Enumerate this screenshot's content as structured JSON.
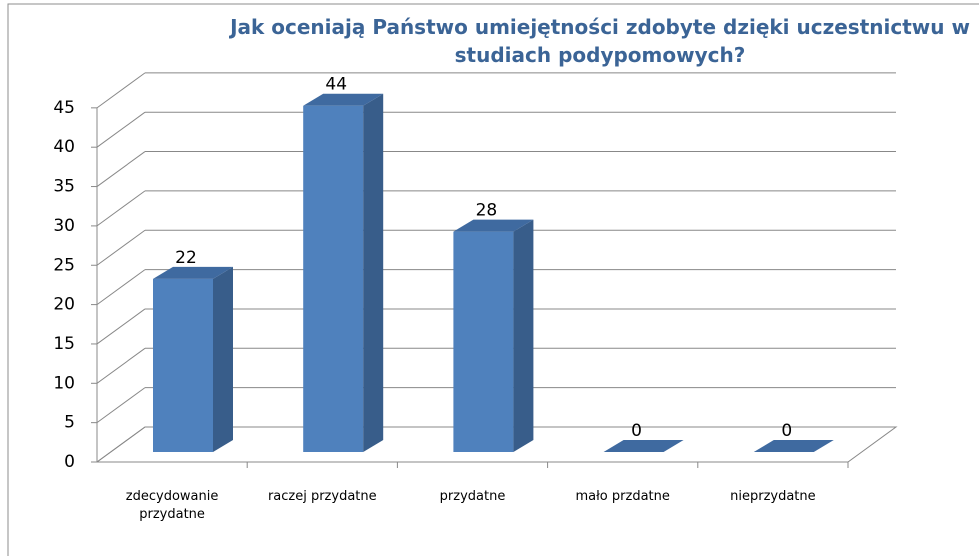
{
  "chart_data": {
    "type": "bar3d",
    "title": "Jak oceniają Państwo umiejętności zdobyte dzięki uczestnictwu w studiach podypomowych?",
    "title_lines": [
      "Jak oceniają Państwo umiejętności zdobyte dzięki uczestnictwu w",
      "studiach podypomowych?"
    ],
    "categories": [
      "zdecydowanie przydatne",
      "raczej przydatne",
      "przydatne",
      "mało przdatne",
      "nieprzydatne"
    ],
    "values": [
      22,
      44,
      28,
      0,
      0
    ],
    "color": "#4f81bd",
    "ylim": [
      0,
      45
    ],
    "yticks": [
      0,
      5,
      10,
      15,
      20,
      25,
      30,
      35,
      40,
      45
    ],
    "grid": true
  }
}
